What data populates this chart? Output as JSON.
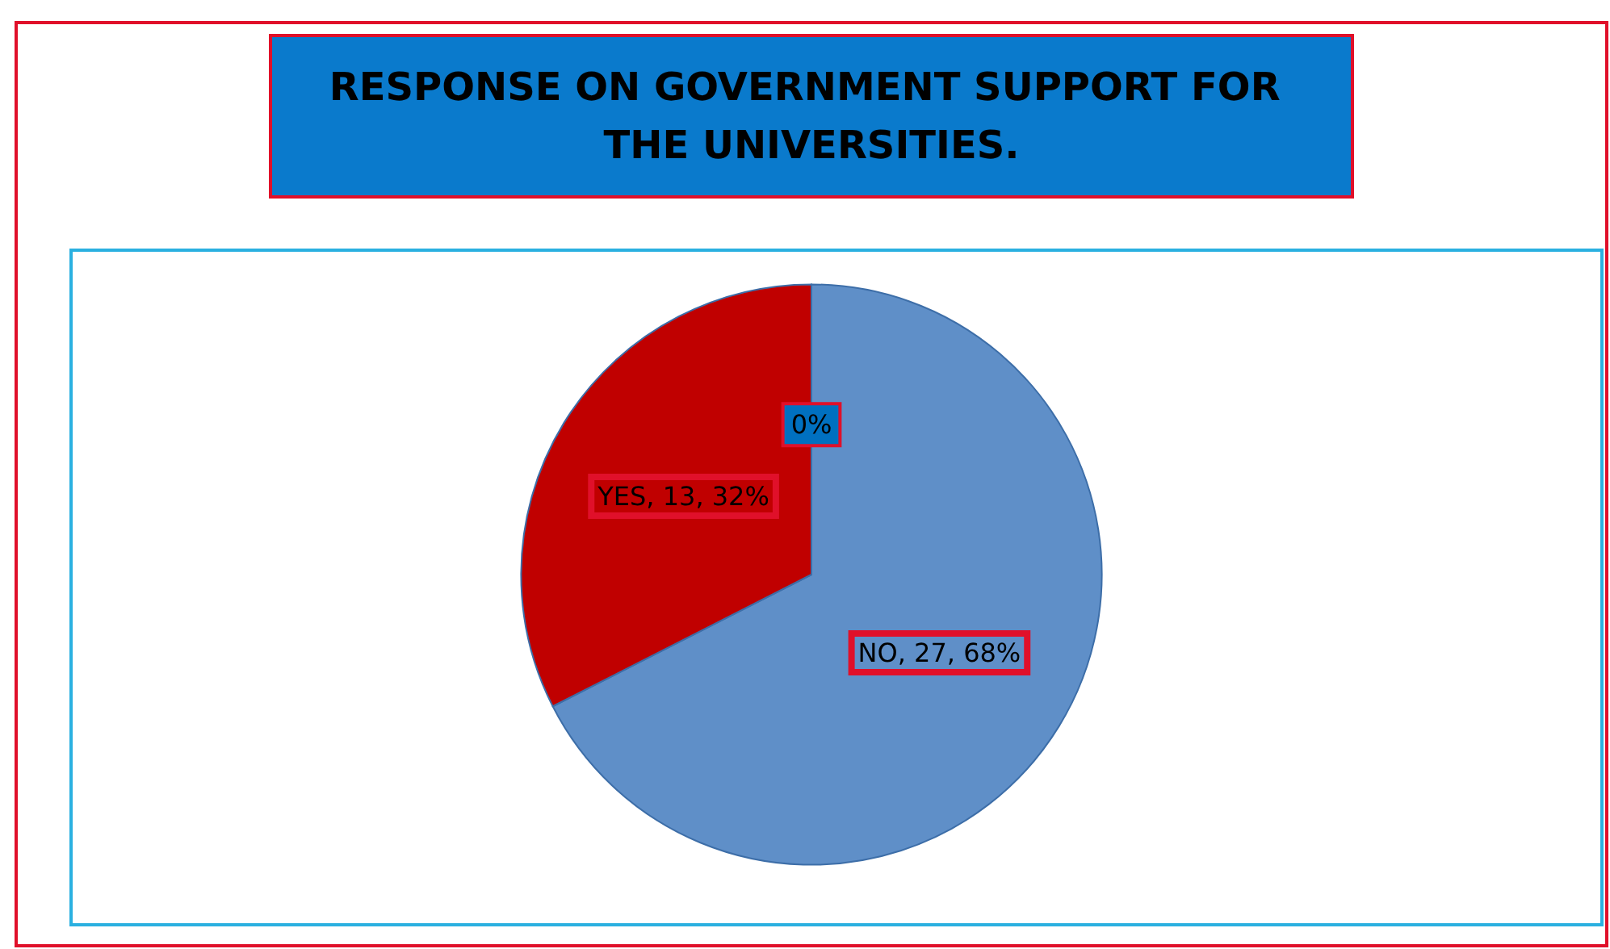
{
  "chart_data": {
    "type": "pie",
    "title": "RESPONSE ON GOVERNMENT SUPPORT FOR THE UNIVERSITIES.",
    "categories": [
      "NO",
      "YES",
      null
    ],
    "values": [
      27,
      13,
      0
    ],
    "colors": [
      "#5f8fc8",
      "#c00000",
      "#0070c0"
    ],
    "value_labels": [
      "27, 68%",
      "13, 32%",
      "0%"
    ],
    "legend": false
  }
}
